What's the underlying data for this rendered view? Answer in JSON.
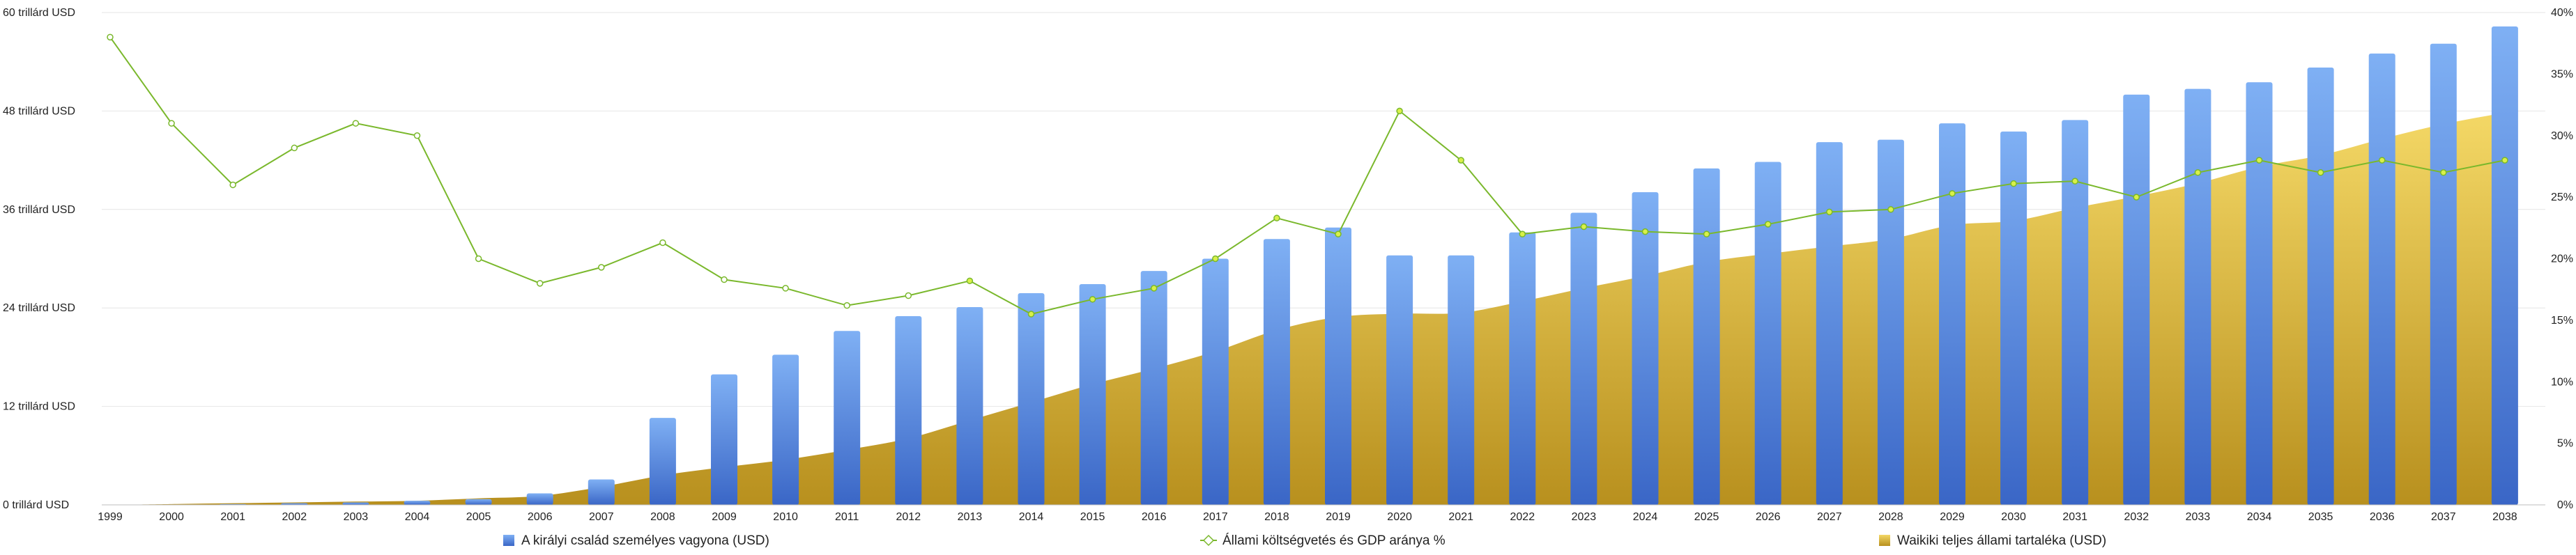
{
  "chart_data": {
    "type": "bar",
    "categories": [
      "1999",
      "2000",
      "2001",
      "2002",
      "2003",
      "2004",
      "2005",
      "2006",
      "2007",
      "2008",
      "2009",
      "2010",
      "2011",
      "2012",
      "2013",
      "2014",
      "2015",
      "2016",
      "2017",
      "2018",
      "2019",
      "2020",
      "2021",
      "2022",
      "2023",
      "2024",
      "2025",
      "2026",
      "2027",
      "2028",
      "2029",
      "2030",
      "2031",
      "2032",
      "2033",
      "2034",
      "2035",
      "2036",
      "2037",
      "2038"
    ],
    "series": [
      {
        "name": "A királyi család személyes vagyona (USD)",
        "kind": "bar",
        "axis": "left",
        "color": "#5b8fe0",
        "values": [
          0,
          0,
          0.1,
          0.2,
          0.3,
          0.5,
          0.7,
          1.4,
          3.1,
          10.6,
          15.9,
          18.3,
          21.2,
          23.0,
          24.1,
          25.8,
          26.9,
          28.5,
          30.0,
          32.4,
          33.8,
          30.4,
          30.4,
          33.2,
          35.6,
          38.1,
          41.0,
          41.8,
          44.2,
          44.5,
          46.5,
          45.5,
          46.9,
          50.0,
          50.7,
          51.5,
          53.3,
          55.0,
          56.2,
          58.3
        ]
      },
      {
        "name": "Állami költségvetés és GDP aránya %",
        "kind": "line",
        "axis": "right",
        "color": "#7ab82c",
        "values": [
          38.0,
          31.0,
          26.0,
          29.0,
          31.0,
          30.0,
          20.0,
          18.0,
          19.3,
          21.3,
          18.3,
          17.6,
          16.2,
          17.0,
          18.2,
          15.5,
          16.7,
          17.6,
          20.0,
          23.3,
          22.0,
          32.0,
          28.0,
          22.0,
          22.6,
          22.2,
          22.0,
          22.8,
          23.8,
          24.0,
          25.3,
          26.1,
          26.3,
          25.0,
          27.0,
          28.0,
          27.0,
          28.0,
          27.0,
          28.0
        ]
      },
      {
        "name": "Waikiki teljes állami tartaléka (USD)",
        "kind": "area",
        "axis": "left",
        "color": "#d8b13a",
        "values": [
          0,
          0.1,
          0.2,
          0.3,
          0.4,
          0.5,
          0.8,
          1.1,
          2.2,
          3.6,
          4.6,
          5.5,
          6.7,
          8.1,
          10.3,
          12.5,
          14.7,
          16.6,
          18.7,
          21.3,
          22.9,
          23.3,
          23.4,
          24.8,
          26.4,
          27.9,
          29.6,
          30.6,
          31.5,
          32.4,
          34.1,
          34.6,
          36.2,
          37.6,
          39.2,
          41.2,
          42.6,
          44.6,
          46.4,
          47.8
        ]
      }
    ],
    "y_left": {
      "min": 0,
      "max": 60,
      "ticks": [
        "0 trillárd USD",
        "12 trillárd USD",
        "24 trillárd USD",
        "36 trillárd USD",
        "48 trillárd USD",
        "60 trillárd USD"
      ]
    },
    "y_right": {
      "min": 0,
      "max": 40,
      "ticks": [
        "0%",
        "5%",
        "10%",
        "15%",
        "20%",
        "25%",
        "30%",
        "35%",
        "40%"
      ]
    },
    "grid": true,
    "legend_position": "bottom"
  }
}
